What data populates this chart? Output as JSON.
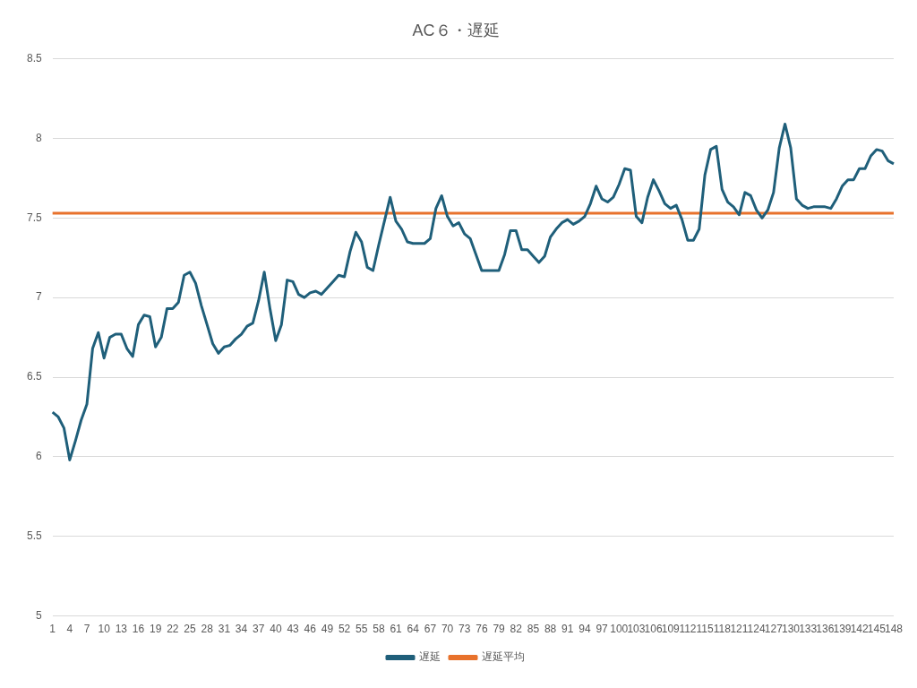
{
  "chart_data": {
    "type": "line",
    "title": "AC６・遅延",
    "categories": [
      "1",
      null,
      null,
      "4",
      null,
      null,
      "7",
      null,
      null,
      "10",
      null,
      null,
      "13",
      null,
      null,
      "16",
      null,
      null,
      "19",
      null,
      null,
      "22",
      null,
      null,
      "25",
      null,
      null,
      "28",
      null,
      null,
      "31",
      null,
      null,
      "34",
      null,
      null,
      "37",
      null,
      null,
      "40",
      null,
      null,
      "43",
      null,
      null,
      "46",
      null,
      null,
      "49",
      null,
      null,
      "52",
      null,
      null,
      "55",
      null,
      null,
      "58",
      null,
      null,
      "61",
      null,
      null,
      "64",
      null,
      null,
      "67",
      null,
      null,
      "70",
      null,
      null,
      "73",
      null,
      null,
      "76",
      null,
      null,
      "79",
      null,
      null,
      "82",
      null,
      null,
      "85",
      null,
      null,
      "88",
      null,
      null,
      "91",
      null,
      null,
      "94",
      null,
      null,
      "97",
      null,
      null,
      "100",
      null,
      null,
      "103",
      null,
      null,
      "106",
      null,
      null,
      "109",
      null,
      null,
      "112",
      null,
      null,
      "115",
      null,
      null,
      "118",
      null,
      null,
      "121",
      null,
      null,
      "124",
      null,
      null,
      "127",
      null,
      null,
      "130",
      null,
      null,
      "133",
      null,
      null,
      "136",
      null,
      null,
      "139",
      null,
      null,
      "142",
      null,
      null,
      "145",
      null,
      null,
      "148"
    ],
    "series": [
      {
        "name": "遅延",
        "color": "#1f5f7a",
        "values": [
          6.28,
          6.25,
          6.18,
          5.98,
          6.1,
          6.23,
          6.33,
          6.68,
          6.78,
          6.62,
          6.75,
          6.77,
          6.77,
          6.68,
          6.63,
          6.83,
          6.89,
          6.88,
          6.69,
          6.75,
          6.93,
          6.93,
          6.97,
          7.14,
          7.16,
          7.09,
          6.95,
          6.83,
          6.71,
          6.65,
          6.69,
          6.7,
          6.74,
          6.77,
          6.82,
          6.84,
          6.98,
          7.16,
          6.93,
          6.73,
          6.83,
          7.11,
          7.1,
          7.02,
          7.0,
          7.03,
          7.04,
          7.02,
          7.06,
          7.1,
          7.14,
          7.13,
          7.29,
          7.41,
          7.35,
          7.19,
          7.17,
          7.33,
          7.48,
          7.63,
          7.48,
          7.43,
          7.35,
          7.34,
          7.34,
          7.34,
          7.37,
          7.56,
          7.64,
          7.51,
          7.45,
          7.47,
          7.4,
          7.37,
          7.27,
          7.17,
          7.17,
          7.17,
          7.17,
          7.27,
          7.42,
          7.42,
          7.3,
          7.3,
          7.26,
          7.22,
          7.26,
          7.38,
          7.43,
          7.47,
          7.49,
          7.46,
          7.48,
          7.51,
          7.59,
          7.7,
          7.62,
          7.6,
          7.63,
          7.71,
          7.81,
          7.8,
          7.51,
          7.47,
          7.63,
          7.74,
          7.67,
          7.59,
          7.56,
          7.58,
          7.49,
          7.36,
          7.36,
          7.43,
          7.77,
          7.93,
          7.95,
          7.68,
          7.6,
          7.57,
          7.52,
          7.66,
          7.64,
          7.55,
          7.5,
          7.55,
          7.66,
          7.94,
          8.09,
          7.94,
          7.62,
          7.58,
          7.56,
          7.57,
          7.57,
          7.57,
          7.56,
          7.62,
          7.7,
          7.74,
          7.74,
          7.81,
          7.81,
          7.89,
          7.93,
          7.92,
          7.86,
          7.84
        ]
      },
      {
        "name": "遅延平均",
        "color": "#e8722c",
        "values": [
          7.53,
          7.53,
          7.53,
          7.53,
          7.53,
          7.53,
          7.53,
          7.53,
          7.53,
          7.53,
          7.53,
          7.53,
          7.53,
          7.53,
          7.53,
          7.53,
          7.53,
          7.53,
          7.53,
          7.53,
          7.53,
          7.53,
          7.53,
          7.53,
          7.53,
          7.53,
          7.53,
          7.53,
          7.53,
          7.53,
          7.53,
          7.53,
          7.53,
          7.53,
          7.53,
          7.53,
          7.53,
          7.53,
          7.53,
          7.53,
          7.53,
          7.53,
          7.53,
          7.53,
          7.53,
          7.53,
          7.53,
          7.53,
          7.53,
          7.53,
          7.53,
          7.53,
          7.53,
          7.53,
          7.53,
          7.53,
          7.53,
          7.53,
          7.53,
          7.53,
          7.53,
          7.53,
          7.53,
          7.53,
          7.53,
          7.53,
          7.53,
          7.53,
          7.53,
          7.53,
          7.53,
          7.53,
          7.53,
          7.53,
          7.53,
          7.53,
          7.53,
          7.53,
          7.53,
          7.53,
          7.53,
          7.53,
          7.53,
          7.53,
          7.53,
          7.53,
          7.53,
          7.53,
          7.53,
          7.53,
          7.53,
          7.53,
          7.53,
          7.53,
          7.53,
          7.53,
          7.53,
          7.53,
          7.53,
          7.53,
          7.53,
          7.53,
          7.53,
          7.53,
          7.53,
          7.53,
          7.53,
          7.53,
          7.53,
          7.53,
          7.53,
          7.53,
          7.53,
          7.53,
          7.53,
          7.53,
          7.53,
          7.53,
          7.53,
          7.53,
          7.53,
          7.53,
          7.53,
          7.53,
          7.53,
          7.53,
          7.53,
          7.53,
          7.53,
          7.53,
          7.53,
          7.53,
          7.53,
          7.53,
          7.53,
          7.53,
          7.53,
          7.53,
          7.53,
          7.53,
          7.53,
          7.53,
          7.53,
          7.53,
          7.53,
          7.53,
          7.53,
          7.53
        ]
      }
    ],
    "ylim": [
      5,
      8.5
    ],
    "yticks": [
      5,
      5.5,
      6,
      6.5,
      7,
      7.5,
      8,
      8.5
    ],
    "grid": "y",
    "legend": "bottom",
    "marker": "none",
    "line_style": "solid"
  }
}
